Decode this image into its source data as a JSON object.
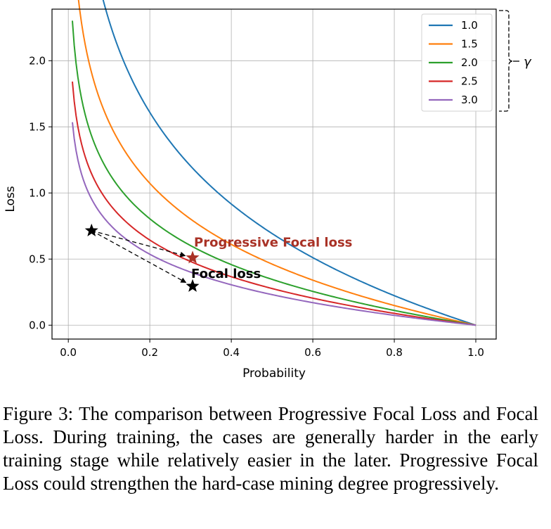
{
  "chart_data": {
    "type": "line",
    "title": "",
    "xlabel": "Probability",
    "ylabel": "Loss",
    "xlim": [
      -0.04,
      1.05
    ],
    "ylim": [
      -0.105,
      2.39
    ],
    "xticks": [
      0.0,
      0.2,
      0.4,
      0.6,
      0.8,
      1.0
    ],
    "xtick_labels": [
      "0.0",
      "0.2",
      "0.4",
      "0.6",
      "0.8",
      "1.0"
    ],
    "yticks": [
      0.0,
      0.5,
      1.0,
      1.5,
      2.0
    ],
    "ytick_labels": [
      "0.0",
      "0.5",
      "1.0",
      "1.5",
      "2.0"
    ],
    "grid": true,
    "legend_position": "top-right",
    "legend_group_label": "γ",
    "x_start": 0.01,
    "x_end": 1.0,
    "series": [
      {
        "name": "1.0",
        "exponent": 1.0,
        "color": "#1f77b4"
      },
      {
        "name": "1.5",
        "exponent": 1.5,
        "color": "#ff7f0e"
      },
      {
        "name": "2.0",
        "exponent": 2.0,
        "color": "#2ca02c"
      },
      {
        "name": "2.5",
        "exponent": 2.5,
        "color": "#d62728"
      },
      {
        "name": "3.0",
        "exponent": 3.0,
        "color": "#9467bd"
      }
    ],
    "annotations": [
      {
        "label": "Progressive Focal loss",
        "x": 0.305,
        "y": 0.51,
        "color": "#a93226",
        "marker": "star"
      },
      {
        "label": "Focal loss",
        "x": 0.305,
        "y": 0.295,
        "color": "#000000",
        "marker": "star"
      }
    ],
    "start_point": {
      "x": 0.057,
      "y": 0.715,
      "color": "#000000",
      "marker": "star"
    }
  },
  "caption": "Figure 3: The comparison between Progressive Focal Loss and Focal Loss. During training, the cases are generally harder in the early training stage while relatively easier in the later. Progressive Focal Loss could strengthen the hard-case mining degree progressively."
}
